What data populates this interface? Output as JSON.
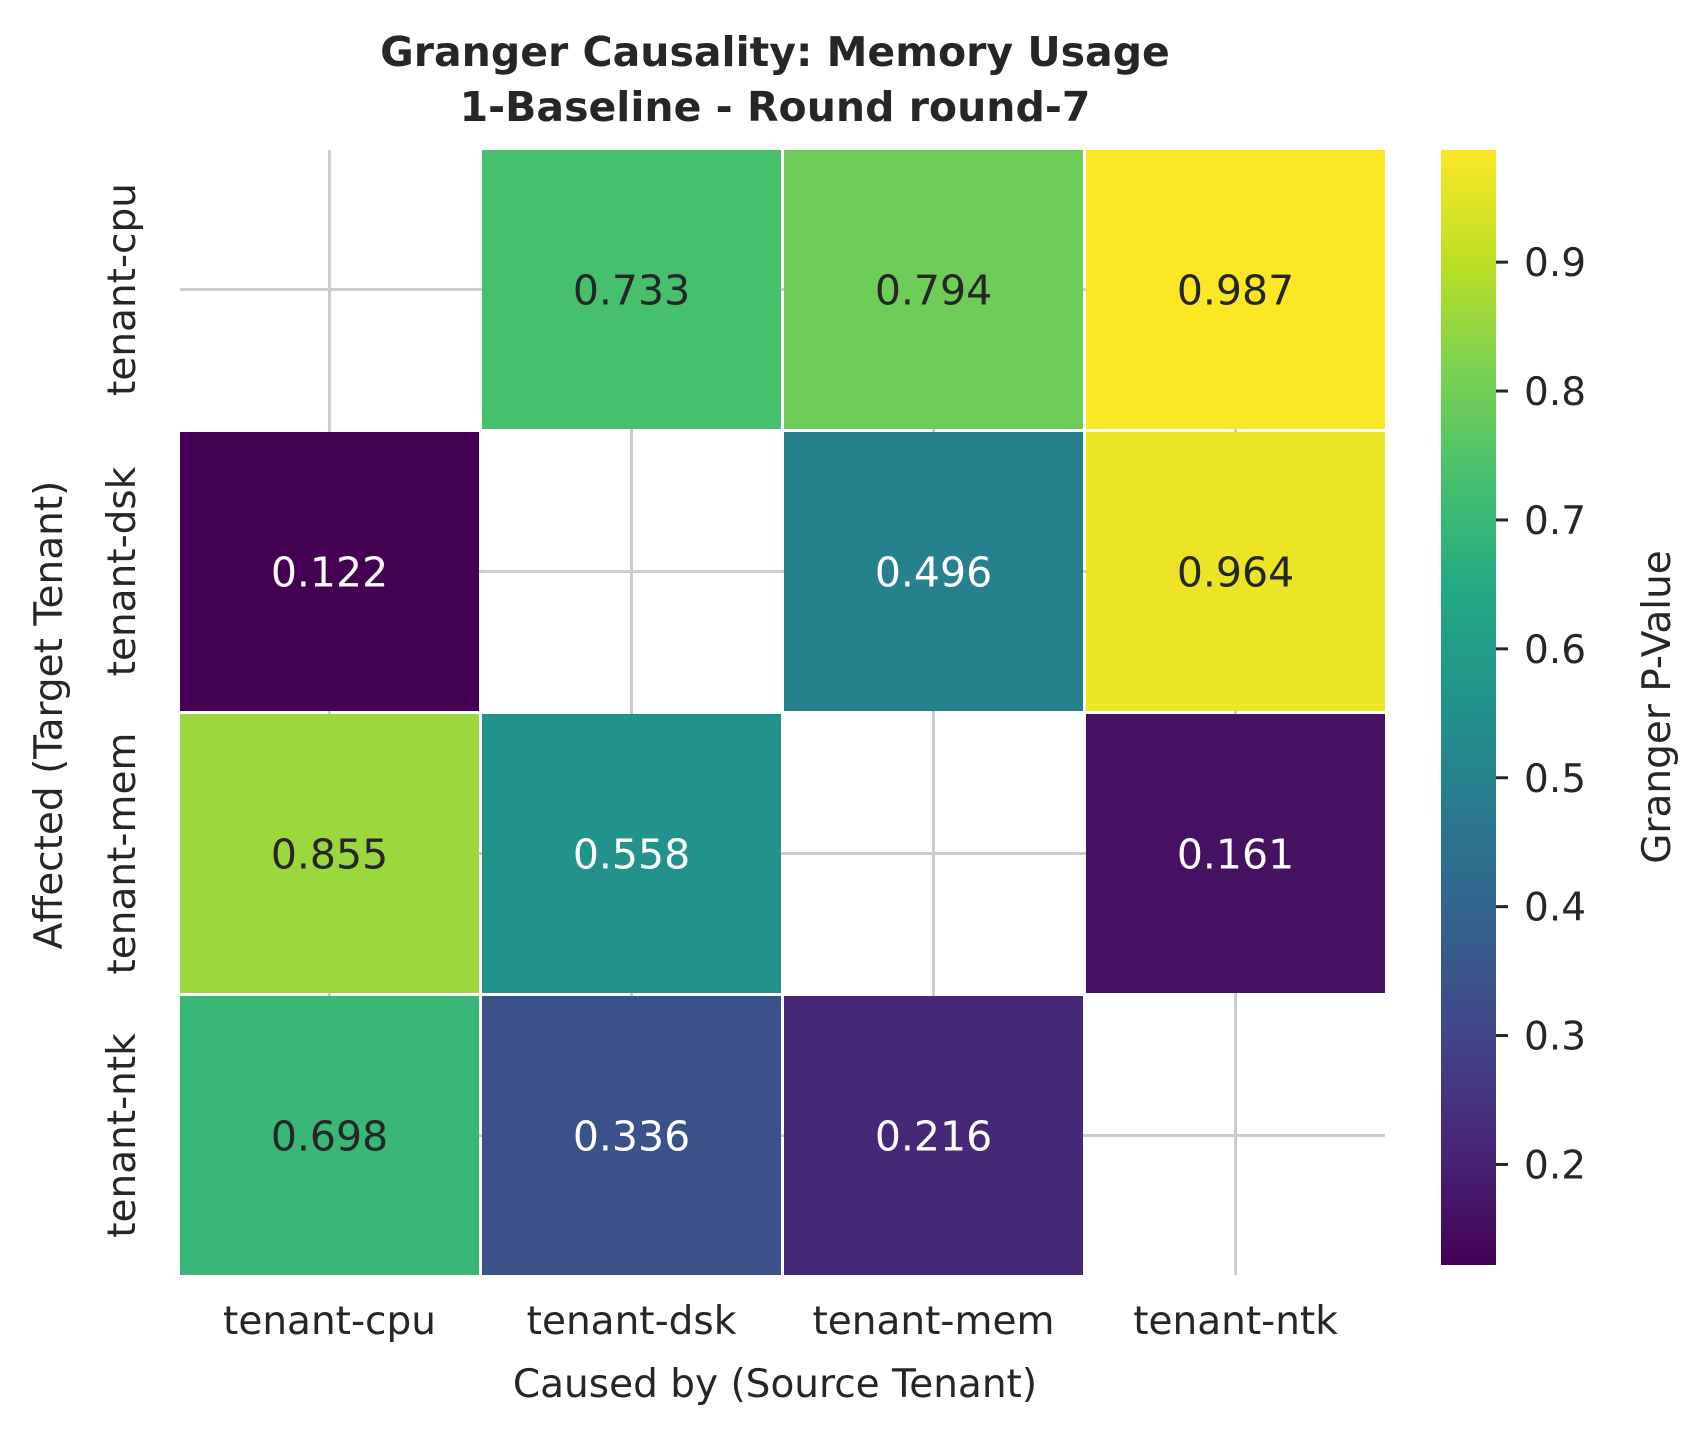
{
  "chart_data": {
    "type": "heatmap",
    "title": "Granger Causality: Memory Usage",
    "subtitle": "1-Baseline - Round round-7",
    "xlabel": "Caused by (Source Tenant)",
    "ylabel": "Affected (Target Tenant)",
    "x_categories": [
      "tenant-cpu",
      "tenant-dsk",
      "tenant-mem",
      "tenant-ntk"
    ],
    "y_categories": [
      "tenant-cpu",
      "tenant-dsk",
      "tenant-mem",
      "tenant-ntk"
    ],
    "values": [
      [
        null,
        0.733,
        0.794,
        0.987
      ],
      [
        0.122,
        null,
        0.496,
        0.964
      ],
      [
        0.855,
        0.558,
        null,
        0.161
      ],
      [
        0.698,
        0.336,
        0.216,
        null
      ]
    ],
    "colorbar": {
      "label": "Granger P-Value",
      "colormap": "viridis",
      "vmin": 0.122,
      "vmax": 0.987,
      "ticks": [
        0.2,
        0.3,
        0.4,
        0.5,
        0.6,
        0.7,
        0.8,
        0.9
      ],
      "tick_labels": [
        "0.2",
        "0.3",
        "0.4",
        "0.5",
        "0.6",
        "0.7",
        "0.8",
        "0.9"
      ]
    },
    "grid": true
  }
}
